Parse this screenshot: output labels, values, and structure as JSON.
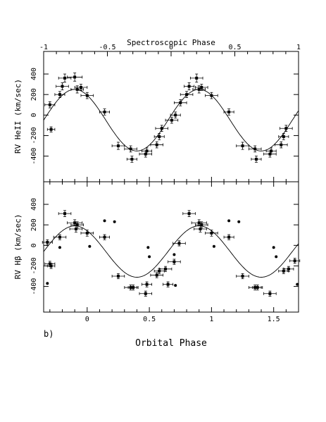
{
  "figure": {
    "panel_label": "b)",
    "top_axis_label": "Spectroscopic Phase",
    "bottom_axis_label": "Orbital Phase"
  },
  "chart_data": [
    {
      "type": "scatter",
      "panel": "upper",
      "ylabel": "RV HeII (km/sec)",
      "xlim": [
        -0.35,
        1.7
      ],
      "ylim": [
        -650,
        620
      ],
      "top_xlim": [
        -1,
        1
      ],
      "top_ticks": [
        "-1",
        "-0.5",
        "0",
        "0.5",
        "1"
      ],
      "yticks": [
        -400,
        -200,
        0,
        200,
        400
      ],
      "curve": {
        "gamma": -50,
        "amplitude": 300,
        "phase_zero": 0.4
      },
      "points": [
        {
          "x": -0.3,
          "y": 100,
          "xerr": 0.04,
          "yerr": 30
        },
        {
          "x": -0.29,
          "y": -140,
          "xerr": 0.03,
          "yerr": 25
        },
        {
          "x": -0.22,
          "y": 200,
          "xerr": 0.04,
          "yerr": 30
        },
        {
          "x": -0.2,
          "y": 280,
          "xerr": 0.05,
          "yerr": 35
        },
        {
          "x": -0.18,
          "y": 360,
          "xerr": 0.05,
          "yerr": 40
        },
        {
          "x": -0.1,
          "y": 370,
          "xerr": 0.06,
          "yerr": 40
        },
        {
          "x": -0.08,
          "y": 250,
          "xerr": 0.05,
          "yerr": 35
        },
        {
          "x": -0.05,
          "y": 270,
          "xerr": 0.05,
          "yerr": 30
        },
        {
          "x": 0.0,
          "y": 190,
          "xerr": 0.05,
          "yerr": 30
        },
        {
          "x": 0.14,
          "y": 30,
          "xerr": 0.04,
          "yerr": 30
        },
        {
          "x": 0.25,
          "y": -300,
          "xerr": 0.05,
          "yerr": 35
        },
        {
          "x": 0.35,
          "y": -330,
          "xerr": 0.05,
          "yerr": 30
        },
        {
          "x": 0.36,
          "y": -430,
          "xerr": 0.04,
          "yerr": 30
        },
        {
          "x": 0.47,
          "y": -380,
          "xerr": 0.05,
          "yerr": 30
        },
        {
          "x": 0.48,
          "y": -350,
          "xerr": 0.04,
          "yerr": 30
        },
        {
          "x": 0.56,
          "y": -290,
          "xerr": 0.05,
          "yerr": 30
        },
        {
          "x": 0.58,
          "y": -210,
          "xerr": 0.04,
          "yerr": 30
        },
        {
          "x": 0.6,
          "y": -130,
          "xerr": 0.05,
          "yerr": 30
        },
        {
          "x": 0.68,
          "y": -50,
          "xerr": 0.05,
          "yerr": 30
        },
        {
          "x": 0.71,
          "y": 0,
          "xerr": 0.04,
          "yerr": 30
        },
        {
          "x": 0.75,
          "y": 120,
          "xerr": 0.05,
          "yerr": 30
        },
        {
          "x": 0.8,
          "y": 200,
          "xerr": 0.05,
          "yerr": 30
        },
        {
          "x": 0.82,
          "y": 280,
          "xerr": 0.04,
          "yerr": 35
        },
        {
          "x": 0.88,
          "y": 360,
          "xerr": 0.05,
          "yerr": 40
        },
        {
          "x": 0.9,
          "y": 250,
          "xerr": 0.05,
          "yerr": 35
        },
        {
          "x": 0.92,
          "y": 270,
          "xerr": 0.05,
          "yerr": 30
        },
        {
          "x": 1.0,
          "y": 190,
          "xerr": 0.05,
          "yerr": 30
        },
        {
          "x": 1.14,
          "y": 30,
          "xerr": 0.04,
          "yerr": 30
        },
        {
          "x": 1.25,
          "y": -300,
          "xerr": 0.05,
          "yerr": 35
        },
        {
          "x": 1.35,
          "y": -330,
          "xerr": 0.05,
          "yerr": 30
        },
        {
          "x": 1.36,
          "y": -430,
          "xerr": 0.04,
          "yerr": 30
        },
        {
          "x": 1.47,
          "y": -380,
          "xerr": 0.05,
          "yerr": 30
        },
        {
          "x": 1.48,
          "y": -350,
          "xerr": 0.04,
          "yerr": 30
        },
        {
          "x": 1.56,
          "y": -290,
          "xerr": 0.05,
          "yerr": 30
        },
        {
          "x": 1.58,
          "y": -210,
          "xerr": 0.04,
          "yerr": 30
        },
        {
          "x": 1.6,
          "y": -130,
          "xerr": 0.05,
          "yerr": 30
        }
      ]
    },
    {
      "type": "scatter",
      "panel": "lower",
      "ylabel": "RV Hβ (km/sec)",
      "xlim": [
        -0.35,
        1.7
      ],
      "ylim": [
        -650,
        620
      ],
      "xticks": [
        0,
        0.5,
        1,
        1.5
      ],
      "xticklabels": [
        "0",
        "0.5",
        "1",
        "1.5"
      ],
      "yticks": [
        -400,
        -200,
        0,
        200,
        400
      ],
      "curve": {
        "gamma": -60,
        "amplitude": 250,
        "phase_zero": 0.4
      },
      "points": [
        {
          "x": -0.32,
          "y": 30,
          "xerr": 0.04,
          "yerr": 25
        },
        {
          "x": -0.3,
          "y": -180,
          "xerr": 0.04,
          "yerr": 25
        },
        {
          "x": -0.29,
          "y": -200,
          "xerr": 0.03,
          "yerr": 25
        },
        {
          "x": -0.22,
          "y": 80,
          "xerr": 0.05,
          "yerr": 25
        },
        {
          "x": -0.18,
          "y": 310,
          "xerr": 0.05,
          "yerr": 30
        },
        {
          "x": -0.1,
          "y": 220,
          "xerr": 0.06,
          "yerr": 30
        },
        {
          "x": -0.09,
          "y": 160,
          "xerr": 0.05,
          "yerr": 30
        },
        {
          "x": -0.08,
          "y": 200,
          "xerr": 0.05,
          "yerr": 30
        },
        {
          "x": 0.0,
          "y": 120,
          "xerr": 0.05,
          "yerr": 30
        },
        {
          "x": 0.14,
          "y": 80,
          "xerr": 0.04,
          "yerr": 25
        },
        {
          "x": 0.25,
          "y": -300,
          "xerr": 0.05,
          "yerr": 25
        },
        {
          "x": 0.35,
          "y": -410,
          "xerr": 0.05,
          "yerr": 25
        },
        {
          "x": 0.37,
          "y": -410,
          "xerr": 0.04,
          "yerr": 25
        },
        {
          "x": 0.47,
          "y": -470,
          "xerr": 0.05,
          "yerr": 25
        },
        {
          "x": 0.48,
          "y": -380,
          "xerr": 0.04,
          "yerr": 25
        },
        {
          "x": 0.56,
          "y": -290,
          "xerr": 0.05,
          "yerr": 25
        },
        {
          "x": 0.58,
          "y": -250,
          "xerr": 0.04,
          "yerr": 25
        },
        {
          "x": 0.63,
          "y": -230,
          "xerr": 0.05,
          "yerr": 25
        },
        {
          "x": 0.65,
          "y": -380,
          "xerr": 0.04,
          "yerr": 25
        },
        {
          "x": 0.7,
          "y": -160,
          "xerr": 0.05,
          "yerr": 25
        },
        {
          "x": 0.74,
          "y": 20,
          "xerr": 0.05,
          "yerr": 25
        },
        {
          "x": 0.82,
          "y": 310,
          "xerr": 0.05,
          "yerr": 30
        },
        {
          "x": 0.9,
          "y": 220,
          "xerr": 0.06,
          "yerr": 30
        },
        {
          "x": 0.91,
          "y": 160,
          "xerr": 0.05,
          "yerr": 30
        },
        {
          "x": 0.92,
          "y": 200,
          "xerr": 0.05,
          "yerr": 30
        },
        {
          "x": 1.0,
          "y": 120,
          "xerr": 0.05,
          "yerr": 30
        },
        {
          "x": 1.14,
          "y": 80,
          "xerr": 0.04,
          "yerr": 25
        },
        {
          "x": 1.25,
          "y": -300,
          "xerr": 0.05,
          "yerr": 25
        },
        {
          "x": 1.35,
          "y": -410,
          "xerr": 0.05,
          "yerr": 25
        },
        {
          "x": 1.37,
          "y": -410,
          "xerr": 0.04,
          "yerr": 25
        },
        {
          "x": 1.47,
          "y": -470,
          "xerr": 0.05,
          "yerr": 25
        },
        {
          "x": 1.58,
          "y": -250,
          "xerr": 0.04,
          "yerr": 25
        },
        {
          "x": 1.62,
          "y": -230,
          "xerr": 0.04,
          "yerr": 25
        },
        {
          "x": 1.67,
          "y": -150,
          "xerr": 0.04,
          "yerr": 25
        }
      ],
      "dots": [
        {
          "x": -0.32,
          "y": -370
        },
        {
          "x": -0.22,
          "y": -20
        },
        {
          "x": 0.02,
          "y": -10
        },
        {
          "x": 0.14,
          "y": 240
        },
        {
          "x": 0.22,
          "y": 230
        },
        {
          "x": 0.49,
          "y": -20
        },
        {
          "x": 0.5,
          "y": -110
        },
        {
          "x": 0.7,
          "y": -90
        },
        {
          "x": 0.71,
          "y": -390
        },
        {
          "x": 1.02,
          "y": -10
        },
        {
          "x": 1.14,
          "y": 240
        },
        {
          "x": 1.22,
          "y": 230
        },
        {
          "x": 1.5,
          "y": -20
        },
        {
          "x": 1.52,
          "y": -110
        },
        {
          "x": 1.69,
          "y": -380
        }
      ]
    }
  ]
}
